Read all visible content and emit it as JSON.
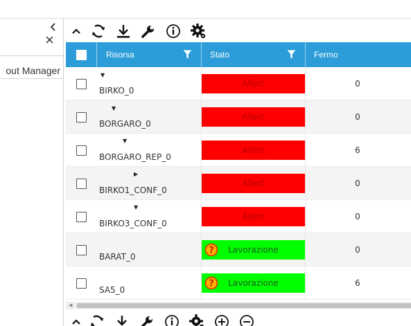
{
  "left_panel": {
    "collapse_icon": "chevron-left-icon",
    "close_icon": "close-icon",
    "item_label": "out Manager"
  },
  "toolbar": {
    "icons": [
      "chevron-up-icon",
      "refresh-icon",
      "download-icon",
      "wrench-icon",
      "info-icon",
      "settings-gear-icon"
    ]
  },
  "grid": {
    "columns": [
      "Risorsa",
      "Stato",
      "Fermo"
    ],
    "rows": [
      {
        "name": "BIRKO_0",
        "arrow": "▼",
        "state": "Allert",
        "state_type": "alert",
        "fermo": "0"
      },
      {
        "name": "BORGARO_0",
        "arrow": "▼",
        "state": "Allert",
        "state_type": "alert",
        "fermo": "0"
      },
      {
        "name": "BORGARO_REP_0",
        "arrow": "▼",
        "state": "Allert",
        "state_type": "alert",
        "fermo": "6"
      },
      {
        "name": "BIRKO1_CONF_0",
        "arrow": "▶",
        "state": "Allert",
        "state_type": "alert",
        "fermo": "0"
      },
      {
        "name": "BIRKO3_CONF_0",
        "arrow": "▼",
        "state": "Allert",
        "state_type": "alert",
        "fermo": "0"
      },
      {
        "name": "BARAT_0",
        "arrow": "",
        "state": "Lavorazione",
        "state_type": "work",
        "fermo": "0"
      },
      {
        "name": "SA5_0",
        "arrow": "",
        "state": "Lavorazione",
        "state_type": "work",
        "fermo": "6"
      }
    ]
  },
  "colors": {
    "header_blue": "#2c9dd8",
    "alert_red": "#ff0000",
    "work_green": "#00ff00",
    "question_orange": "#ff6a00"
  },
  "bottom_toolbar": {
    "icons": [
      "chevron-up-icon",
      "refresh-icon",
      "download-icon",
      "wrench-icon",
      "info-icon",
      "settings-gear-icon",
      "zoom-in-icon",
      "zoom-out-icon"
    ]
  }
}
